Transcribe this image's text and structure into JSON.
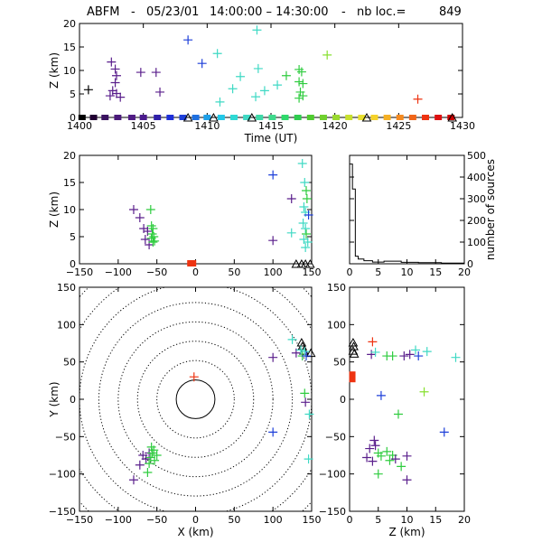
{
  "title": {
    "station": "ABFM",
    "dash1": "-",
    "date": "05/23/01",
    "time_range": "14:00:00 – 14:30:00",
    "dash2": "-",
    "count_label": "nb loc.=",
    "count_value": "849"
  },
  "colors": {
    "purple": "#5a1f8c",
    "blue": "#1d3fd9",
    "cyan": "#3fd9c4",
    "green": "#2fcc3f",
    "lime": "#88e030",
    "red": "#ee3311",
    "black": "#000000"
  },
  "chart_data": [
    {
      "panel": "height-vs-time",
      "type": "scatter",
      "xlabel": "Time (UT)",
      "ylabel": "Z (km)",
      "xlim": [
        1400,
        1430
      ],
      "ylim": [
        0,
        20
      ],
      "xticks": [
        "1400",
        "1405",
        "1410",
        "1415",
        "1420",
        "1425",
        "1430"
      ],
      "yticks": [
        "0",
        "5",
        "10",
        "15",
        "20"
      ],
      "points": [
        {
          "x": 1400.7,
          "y": 5.9,
          "c": "black"
        },
        {
          "x": 1402.5,
          "y": 11.8,
          "c": "purple"
        },
        {
          "x": 1402.8,
          "y": 10.3,
          "c": "purple"
        },
        {
          "x": 1402.9,
          "y": 8.9,
          "c": "purple"
        },
        {
          "x": 1402.8,
          "y": 7.4,
          "c": "purple"
        },
        {
          "x": 1402.6,
          "y": 5.7,
          "c": "purple"
        },
        {
          "x": 1402.9,
          "y": 5.1,
          "c": "purple"
        },
        {
          "x": 1402.4,
          "y": 4.6,
          "c": "purple"
        },
        {
          "x": 1403.2,
          "y": 4.3,
          "c": "purple"
        },
        {
          "x": 1404.8,
          "y": 9.6,
          "c": "purple"
        },
        {
          "x": 1406.0,
          "y": 9.6,
          "c": "purple"
        },
        {
          "x": 1406.3,
          "y": 5.4,
          "c": "purple"
        },
        {
          "x": 1408.5,
          "y": 16.5,
          "c": "blue"
        },
        {
          "x": 1409.6,
          "y": 11.5,
          "c": "blue"
        },
        {
          "x": 1410.8,
          "y": 13.6,
          "c": "cyan"
        },
        {
          "x": 1411.0,
          "y": 3.3,
          "c": "cyan"
        },
        {
          "x": 1412.0,
          "y": 6.1,
          "c": "cyan"
        },
        {
          "x": 1412.6,
          "y": 8.7,
          "c": "cyan"
        },
        {
          "x": 1413.9,
          "y": 18.6,
          "c": "cyan"
        },
        {
          "x": 1414.0,
          "y": 10.4,
          "c": "cyan"
        },
        {
          "x": 1413.8,
          "y": 4.4,
          "c": "cyan"
        },
        {
          "x": 1414.5,
          "y": 5.7,
          "c": "cyan"
        },
        {
          "x": 1415.5,
          "y": 6.9,
          "c": "cyan"
        },
        {
          "x": 1416.2,
          "y": 8.9,
          "c": "green"
        },
        {
          "x": 1417.2,
          "y": 10.2,
          "c": "green"
        },
        {
          "x": 1417.4,
          "y": 9.7,
          "c": "green"
        },
        {
          "x": 1417.2,
          "y": 7.6,
          "c": "green"
        },
        {
          "x": 1417.5,
          "y": 7.2,
          "c": "green"
        },
        {
          "x": 1417.3,
          "y": 5.4,
          "c": "green"
        },
        {
          "x": 1417.5,
          "y": 4.6,
          "c": "green"
        },
        {
          "x": 1417.2,
          "y": 4.1,
          "c": "green"
        },
        {
          "x": 1419.4,
          "y": 13.3,
          "c": "lime"
        },
        {
          "x": 1426.5,
          "y": 3.9,
          "c": "red"
        }
      ],
      "rainbow_markers": [
        {
          "x": 1400.2,
          "c": "#000000"
        },
        {
          "x": 1401.1,
          "c": "#220033"
        },
        {
          "x": 1402.0,
          "c": "#3a1260"
        },
        {
          "x": 1403.0,
          "c": "#4a1a7a"
        },
        {
          "x": 1404.1,
          "c": "#501c84"
        },
        {
          "x": 1405.0,
          "c": "#4a1a8c"
        },
        {
          "x": 1406.1,
          "c": "#3020a8"
        },
        {
          "x": 1407.1,
          "c": "#1d2fd9"
        },
        {
          "x": 1408.1,
          "c": "#1d3fd9"
        },
        {
          "x": 1409.1,
          "c": "#1f70e0"
        },
        {
          "x": 1410.0,
          "c": "#1fa0e8"
        },
        {
          "x": 1411.1,
          "c": "#22c8e8"
        },
        {
          "x": 1412.1,
          "c": "#2fd9d4"
        },
        {
          "x": 1413.1,
          "c": "#3fd9c4"
        },
        {
          "x": 1414.1,
          "c": "#3fd9a8"
        },
        {
          "x": 1415.1,
          "c": "#3fd98c"
        },
        {
          "x": 1416.1,
          "c": "#2fd96c"
        },
        {
          "x": 1417.1,
          "c": "#2fcc4f"
        },
        {
          "x": 1418.1,
          "c": "#4fcc2f"
        },
        {
          "x": 1419.1,
          "c": "#70d02f"
        },
        {
          "x": 1420.1,
          "c": "#9ad92f"
        },
        {
          "x": 1421.1,
          "c": "#c8e02f"
        },
        {
          "x": 1422.1,
          "c": "#e8e02f"
        },
        {
          "x": 1423.1,
          "c": "#f5d22a"
        },
        {
          "x": 1424.1,
          "c": "#f5b025"
        },
        {
          "x": 1425.1,
          "c": "#f58a20"
        },
        {
          "x": 1426.1,
          "c": "#f0661a"
        },
        {
          "x": 1427.1,
          "c": "#ee3311"
        },
        {
          "x": 1428.1,
          "c": "#dd1111"
        },
        {
          "x": 1429.1,
          "c": "#cc0000"
        }
      ],
      "triangles_x": [
        1408.5,
        1410.5,
        1413.5,
        1422.5,
        1429.2
      ]
    },
    {
      "panel": "height-vs-x",
      "type": "scatter",
      "xlabel": "",
      "ylabel": "Z (km)",
      "xlim": [
        -150,
        150
      ],
      "ylim": [
        0,
        20
      ],
      "xticks": [
        "−150",
        "−100",
        "−50",
        "0",
        "50",
        "100",
        "150"
      ],
      "yticks": [
        "0",
        "5",
        "10",
        "15",
        "20"
      ],
      "points": [
        {
          "x": -80,
          "y": 10.0,
          "c": "purple"
        },
        {
          "x": -72,
          "y": 8.5,
          "c": "purple"
        },
        {
          "x": -67,
          "y": 6.5,
          "c": "purple"
        },
        {
          "x": -62,
          "y": 6.0,
          "c": "purple"
        },
        {
          "x": -65,
          "y": 4.5,
          "c": "purple"
        },
        {
          "x": -60,
          "y": 3.5,
          "c": "purple"
        },
        {
          "x": -58,
          "y": 10.0,
          "c": "green"
        },
        {
          "x": -57,
          "y": 7.0,
          "c": "green"
        },
        {
          "x": -55,
          "y": 6.5,
          "c": "green"
        },
        {
          "x": -56,
          "y": 5.5,
          "c": "green"
        },
        {
          "x": -54,
          "y": 5.0,
          "c": "green"
        },
        {
          "x": -57,
          "y": 4.7,
          "c": "green"
        },
        {
          "x": -53,
          "y": 4.2,
          "c": "green"
        },
        {
          "x": -55,
          "y": 4.0,
          "c": "green"
        },
        {
          "x": 100,
          "y": 16.4,
          "c": "blue"
        },
        {
          "x": 100,
          "y": 4.3,
          "c": "purple"
        },
        {
          "x": 124,
          "y": 12.0,
          "c": "purple"
        },
        {
          "x": 124,
          "y": 5.7,
          "c": "cyan"
        },
        {
          "x": 138,
          "y": 18.5,
          "c": "cyan"
        },
        {
          "x": 141,
          "y": 15.0,
          "c": "cyan"
        },
        {
          "x": 143,
          "y": 13.5,
          "c": "green"
        },
        {
          "x": 144,
          "y": 12.0,
          "c": "green"
        },
        {
          "x": 140,
          "y": 10.5,
          "c": "cyan"
        },
        {
          "x": 142,
          "y": 9.5,
          "c": "cyan"
        },
        {
          "x": 146,
          "y": 9.0,
          "c": "blue"
        },
        {
          "x": 139,
          "y": 7.5,
          "c": "cyan"
        },
        {
          "x": 142,
          "y": 6.5,
          "c": "cyan"
        },
        {
          "x": 143,
          "y": 5.5,
          "c": "green"
        },
        {
          "x": 140,
          "y": 4.5,
          "c": "cyan"
        },
        {
          "x": 145,
          "y": 4.0,
          "c": "cyan"
        },
        {
          "x": 142,
          "y": 3.0,
          "c": "cyan"
        }
      ],
      "red_marker_x": -5,
      "triangles_x": [
        130,
        137,
        142,
        148
      ]
    },
    {
      "panel": "histogram",
      "type": "line",
      "xlabel": "",
      "ylabel": "number of sources",
      "xlim": [
        0,
        20
      ],
      "ylim": [
        0,
        500
      ],
      "xticks": [
        "0",
        "5",
        "10",
        "15",
        "20"
      ],
      "yticks": [
        "0",
        "100",
        "200",
        "300",
        "400",
        "500"
      ],
      "steps": [
        {
          "x0": 0,
          "x1": 0.5,
          "y": 460
        },
        {
          "x0": 0.5,
          "x1": 1.0,
          "y": 345
        },
        {
          "x0": 1.0,
          "x1": 1.5,
          "y": 35
        },
        {
          "x0": 1.5,
          "x1": 2.5,
          "y": 22
        },
        {
          "x0": 2.5,
          "x1": 4.0,
          "y": 14
        },
        {
          "x0": 4.0,
          "x1": 6.0,
          "y": 8
        },
        {
          "x0": 6.0,
          "x1": 9.0,
          "y": 12
        },
        {
          "x0": 9.0,
          "x1": 12.0,
          "y": 7
        },
        {
          "x0": 12.0,
          "x1": 16.0,
          "y": 5
        },
        {
          "x0": 16.0,
          "x1": 20.0,
          "y": 3
        }
      ]
    },
    {
      "panel": "plan-view",
      "type": "scatter",
      "xlabel": "X (km)",
      "ylabel": "Y (km)",
      "xlim": [
        -150,
        150
      ],
      "ylim": [
        -150,
        150
      ],
      "xticks": [
        "−150",
        "−100",
        "−50",
        "0",
        "50",
        "100",
        "150"
      ],
      "yticks": [
        "−150",
        "−100",
        "−50",
        "0",
        "50",
        "100",
        "150"
      ],
      "rings_km": [
        25,
        50,
        75,
        100,
        125,
        150,
        175,
        200
      ],
      "points": [
        {
          "x": -2,
          "y": 30,
          "c": "red"
        },
        {
          "x": -80,
          "y": -108,
          "c": "purple"
        },
        {
          "x": -72,
          "y": -88,
          "c": "purple"
        },
        {
          "x": -68,
          "y": -75,
          "c": "purple"
        },
        {
          "x": -64,
          "y": -80,
          "c": "purple"
        },
        {
          "x": -60,
          "y": -72,
          "c": "purple"
        },
        {
          "x": -62,
          "y": -98,
          "c": "green"
        },
        {
          "x": -60,
          "y": -86,
          "c": "green"
        },
        {
          "x": -58,
          "y": -78,
          "c": "green"
        },
        {
          "x": -56,
          "y": -72,
          "c": "green"
        },
        {
          "x": -54,
          "y": -68,
          "c": "green"
        },
        {
          "x": -57,
          "y": -64,
          "c": "green"
        },
        {
          "x": -53,
          "y": -82,
          "c": "green"
        },
        {
          "x": -50,
          "y": -75,
          "c": "green"
        },
        {
          "x": 100,
          "y": 56,
          "c": "purple"
        },
        {
          "x": 100,
          "y": -44,
          "c": "blue"
        },
        {
          "x": 125,
          "y": 80,
          "c": "cyan"
        },
        {
          "x": 130,
          "y": 62,
          "c": "purple"
        },
        {
          "x": 136,
          "y": 66,
          "c": "cyan"
        },
        {
          "x": 138,
          "y": 58,
          "c": "green"
        },
        {
          "x": 141,
          "y": 64,
          "c": "cyan"
        },
        {
          "x": 143,
          "y": 58,
          "c": "blue"
        },
        {
          "x": 141,
          "y": 8,
          "c": "green"
        },
        {
          "x": 142,
          "y": -4,
          "c": "purple"
        },
        {
          "x": 147,
          "y": -20,
          "c": "cyan"
        },
        {
          "x": 146,
          "y": -80,
          "c": "cyan"
        }
      ],
      "triangles": [
        {
          "x": 137,
          "y": 75
        },
        {
          "x": 138,
          "y": 70
        },
        {
          "x": 140,
          "y": 64
        },
        {
          "x": 149,
          "y": 61
        }
      ]
    },
    {
      "panel": "y-vs-height",
      "type": "scatter",
      "xlabel": "Z (km)",
      "ylabel": "",
      "xlim": [
        0,
        20
      ],
      "ylim": [
        -150,
        150
      ],
      "xticks": [
        "0",
        "5",
        "10",
        "15",
        "20"
      ],
      "yticks": [
        "−150",
        "−100",
        "−50",
        "0",
        "50",
        "100",
        "150"
      ],
      "points": [
        {
          "x": 4.0,
          "y": 77,
          "c": "red"
        },
        {
          "x": 3.8,
          "y": 60,
          "c": "purple"
        },
        {
          "x": 4.5,
          "y": 63,
          "c": "cyan"
        },
        {
          "x": 6.5,
          "y": 58,
          "c": "green"
        },
        {
          "x": 7.5,
          "y": 58,
          "c": "green"
        },
        {
          "x": 9.5,
          "y": 58,
          "c": "purple"
        },
        {
          "x": 10.5,
          "y": 60,
          "c": "purple"
        },
        {
          "x": 11.5,
          "y": 66,
          "c": "cyan"
        },
        {
          "x": 12.0,
          "y": 58,
          "c": "blue"
        },
        {
          "x": 13.5,
          "y": 64,
          "c": "cyan"
        },
        {
          "x": 18.5,
          "y": 56,
          "c": "cyan"
        },
        {
          "x": 5.5,
          "y": 5,
          "c": "blue"
        },
        {
          "x": 13.0,
          "y": 10,
          "c": "lime"
        },
        {
          "x": 8.5,
          "y": -20,
          "c": "green"
        },
        {
          "x": 16.5,
          "y": -44,
          "c": "blue"
        },
        {
          "x": 4.3,
          "y": -55,
          "c": "purple"
        },
        {
          "x": 4.5,
          "y": -62,
          "c": "purple"
        },
        {
          "x": 3.5,
          "y": -66,
          "c": "purple"
        },
        {
          "x": 5.0,
          "y": -72,
          "c": "green"
        },
        {
          "x": 5.5,
          "y": -76,
          "c": "green"
        },
        {
          "x": 6.5,
          "y": -70,
          "c": "green"
        },
        {
          "x": 7.0,
          "y": -82,
          "c": "green"
        },
        {
          "x": 7.5,
          "y": -75,
          "c": "green"
        },
        {
          "x": 3.0,
          "y": -78,
          "c": "purple"
        },
        {
          "x": 4.0,
          "y": -83,
          "c": "purple"
        },
        {
          "x": 8.0,
          "y": -80,
          "c": "purple"
        },
        {
          "x": 10.0,
          "y": -76,
          "c": "purple"
        },
        {
          "x": 9.0,
          "y": -90,
          "c": "green"
        },
        {
          "x": 5.0,
          "y": -100,
          "c": "green"
        },
        {
          "x": 10.0,
          "y": -108,
          "c": "purple"
        }
      ],
      "red_marker": {
        "x": 0.4,
        "y": 30
      },
      "triangles": [
        {
          "x": 0.3,
          "y": 75
        },
        {
          "x": 0.4,
          "y": 70
        },
        {
          "x": 0.3,
          "y": 64
        },
        {
          "x": 0.5,
          "y": 60
        }
      ]
    }
  ]
}
